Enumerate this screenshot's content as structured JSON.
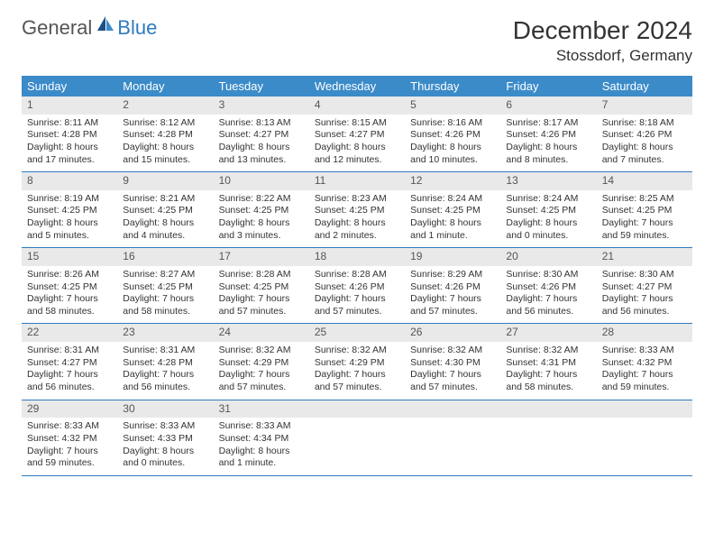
{
  "logo": {
    "general": "General",
    "blue": "Blue"
  },
  "title": "December 2024",
  "subtitle": "Stossdorf, Germany",
  "colors": {
    "header_bg": "#3b8bc9",
    "header_text": "#ffffff",
    "daynum_bg": "#e9e9e9",
    "row_border": "#2f7bbf",
    "logo_blue": "#2f7bbf",
    "logo_gray": "#555555"
  },
  "weekdays": [
    "Sunday",
    "Monday",
    "Tuesday",
    "Wednesday",
    "Thursday",
    "Friday",
    "Saturday"
  ],
  "weeks": [
    [
      {
        "n": "1",
        "sr": "Sunrise: 8:11 AM",
        "ss": "Sunset: 4:28 PM",
        "dl": "Daylight: 8 hours and 17 minutes."
      },
      {
        "n": "2",
        "sr": "Sunrise: 8:12 AM",
        "ss": "Sunset: 4:28 PM",
        "dl": "Daylight: 8 hours and 15 minutes."
      },
      {
        "n": "3",
        "sr": "Sunrise: 8:13 AM",
        "ss": "Sunset: 4:27 PM",
        "dl": "Daylight: 8 hours and 13 minutes."
      },
      {
        "n": "4",
        "sr": "Sunrise: 8:15 AM",
        "ss": "Sunset: 4:27 PM",
        "dl": "Daylight: 8 hours and 12 minutes."
      },
      {
        "n": "5",
        "sr": "Sunrise: 8:16 AM",
        "ss": "Sunset: 4:26 PM",
        "dl": "Daylight: 8 hours and 10 minutes."
      },
      {
        "n": "6",
        "sr": "Sunrise: 8:17 AM",
        "ss": "Sunset: 4:26 PM",
        "dl": "Daylight: 8 hours and 8 minutes."
      },
      {
        "n": "7",
        "sr": "Sunrise: 8:18 AM",
        "ss": "Sunset: 4:26 PM",
        "dl": "Daylight: 8 hours and 7 minutes."
      }
    ],
    [
      {
        "n": "8",
        "sr": "Sunrise: 8:19 AM",
        "ss": "Sunset: 4:25 PM",
        "dl": "Daylight: 8 hours and 5 minutes."
      },
      {
        "n": "9",
        "sr": "Sunrise: 8:21 AM",
        "ss": "Sunset: 4:25 PM",
        "dl": "Daylight: 8 hours and 4 minutes."
      },
      {
        "n": "10",
        "sr": "Sunrise: 8:22 AM",
        "ss": "Sunset: 4:25 PM",
        "dl": "Daylight: 8 hours and 3 minutes."
      },
      {
        "n": "11",
        "sr": "Sunrise: 8:23 AM",
        "ss": "Sunset: 4:25 PM",
        "dl": "Daylight: 8 hours and 2 minutes."
      },
      {
        "n": "12",
        "sr": "Sunrise: 8:24 AM",
        "ss": "Sunset: 4:25 PM",
        "dl": "Daylight: 8 hours and 1 minute."
      },
      {
        "n": "13",
        "sr": "Sunrise: 8:24 AM",
        "ss": "Sunset: 4:25 PM",
        "dl": "Daylight: 8 hours and 0 minutes."
      },
      {
        "n": "14",
        "sr": "Sunrise: 8:25 AM",
        "ss": "Sunset: 4:25 PM",
        "dl": "Daylight: 7 hours and 59 minutes."
      }
    ],
    [
      {
        "n": "15",
        "sr": "Sunrise: 8:26 AM",
        "ss": "Sunset: 4:25 PM",
        "dl": "Daylight: 7 hours and 58 minutes."
      },
      {
        "n": "16",
        "sr": "Sunrise: 8:27 AM",
        "ss": "Sunset: 4:25 PM",
        "dl": "Daylight: 7 hours and 58 minutes."
      },
      {
        "n": "17",
        "sr": "Sunrise: 8:28 AM",
        "ss": "Sunset: 4:25 PM",
        "dl": "Daylight: 7 hours and 57 minutes."
      },
      {
        "n": "18",
        "sr": "Sunrise: 8:28 AM",
        "ss": "Sunset: 4:26 PM",
        "dl": "Daylight: 7 hours and 57 minutes."
      },
      {
        "n": "19",
        "sr": "Sunrise: 8:29 AM",
        "ss": "Sunset: 4:26 PM",
        "dl": "Daylight: 7 hours and 57 minutes."
      },
      {
        "n": "20",
        "sr": "Sunrise: 8:30 AM",
        "ss": "Sunset: 4:26 PM",
        "dl": "Daylight: 7 hours and 56 minutes."
      },
      {
        "n": "21",
        "sr": "Sunrise: 8:30 AM",
        "ss": "Sunset: 4:27 PM",
        "dl": "Daylight: 7 hours and 56 minutes."
      }
    ],
    [
      {
        "n": "22",
        "sr": "Sunrise: 8:31 AM",
        "ss": "Sunset: 4:27 PM",
        "dl": "Daylight: 7 hours and 56 minutes."
      },
      {
        "n": "23",
        "sr": "Sunrise: 8:31 AM",
        "ss": "Sunset: 4:28 PM",
        "dl": "Daylight: 7 hours and 56 minutes."
      },
      {
        "n": "24",
        "sr": "Sunrise: 8:32 AM",
        "ss": "Sunset: 4:29 PM",
        "dl": "Daylight: 7 hours and 57 minutes."
      },
      {
        "n": "25",
        "sr": "Sunrise: 8:32 AM",
        "ss": "Sunset: 4:29 PM",
        "dl": "Daylight: 7 hours and 57 minutes."
      },
      {
        "n": "26",
        "sr": "Sunrise: 8:32 AM",
        "ss": "Sunset: 4:30 PM",
        "dl": "Daylight: 7 hours and 57 minutes."
      },
      {
        "n": "27",
        "sr": "Sunrise: 8:32 AM",
        "ss": "Sunset: 4:31 PM",
        "dl": "Daylight: 7 hours and 58 minutes."
      },
      {
        "n": "28",
        "sr": "Sunrise: 8:33 AM",
        "ss": "Sunset: 4:32 PM",
        "dl": "Daylight: 7 hours and 59 minutes."
      }
    ],
    [
      {
        "n": "29",
        "sr": "Sunrise: 8:33 AM",
        "ss": "Sunset: 4:32 PM",
        "dl": "Daylight: 7 hours and 59 minutes."
      },
      {
        "n": "30",
        "sr": "Sunrise: 8:33 AM",
        "ss": "Sunset: 4:33 PM",
        "dl": "Daylight: 8 hours and 0 minutes."
      },
      {
        "n": "31",
        "sr": "Sunrise: 8:33 AM",
        "ss": "Sunset: 4:34 PM",
        "dl": "Daylight: 8 hours and 1 minute."
      },
      null,
      null,
      null,
      null
    ]
  ]
}
